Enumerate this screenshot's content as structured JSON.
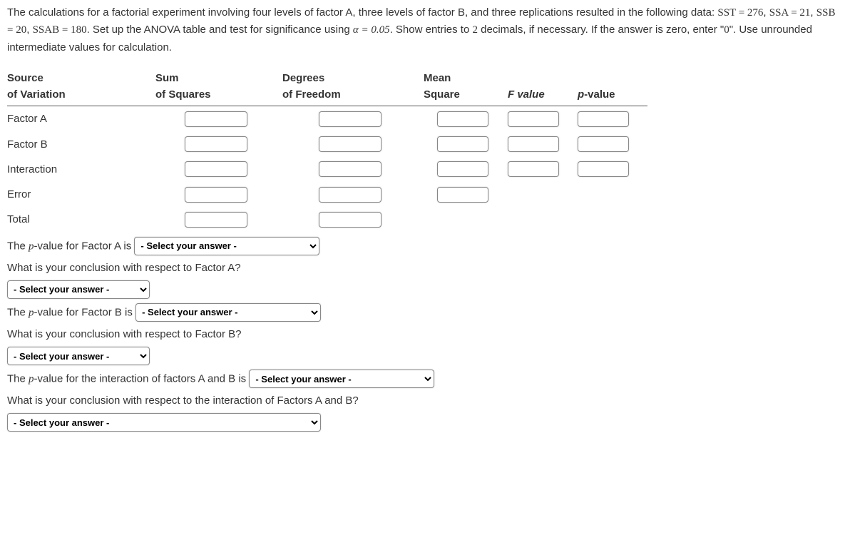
{
  "intro": {
    "part1": "The calculations for a factorial experiment involving four levels of factor A, three levels of factor B, and three replications resulted in the following data: ",
    "eq1_l": "SST",
    "eq1_r": "276",
    "eq2_l": "SSA",
    "eq2_r": "21",
    "eq3_l": "SSB",
    "eq3_r": "20",
    "eq4_l": "SSAB",
    "eq4_r": "180",
    "part2": ". Set up the ANOVA table and test for significance using ",
    "alpha_l": "α",
    "alpha_r": "0.05",
    "part3": ". Show entries to ",
    "two": "2",
    "part4": " decimals, if necessary. If the answer is zero, enter \"",
    "zero": "0",
    "part5": "\". Use unrounded intermediate values for calculation."
  },
  "headers": {
    "source1": "Source",
    "source2": "of Variation",
    "ss1": "Sum",
    "ss2": "of Squares",
    "df1": "Degrees",
    "df2": "of Freedom",
    "ms1": "Mean",
    "ms2": "Square",
    "fv": "F value",
    "pv": "p-value"
  },
  "rows": {
    "a": "Factor A",
    "b": "Factor B",
    "ab": "Interaction",
    "err": "Error",
    "tot": "Total"
  },
  "questions": {
    "pA_pre": "The ",
    "pA_mid": "-value for Factor A is",
    "concA": "What is your conclusion with respect to Factor A?",
    "pB_pre": "The ",
    "pB_mid": "-value for Factor B is",
    "concB": "What is your conclusion with respect to Factor B?",
    "pAB_pre": "The ",
    "pAB_mid": "-value for the interaction of factors A and B is",
    "concAB": "What is your conclusion with respect to the interaction of Factors A and B?",
    "p_letter": "p"
  },
  "select_placeholder": "- Select your answer -"
}
